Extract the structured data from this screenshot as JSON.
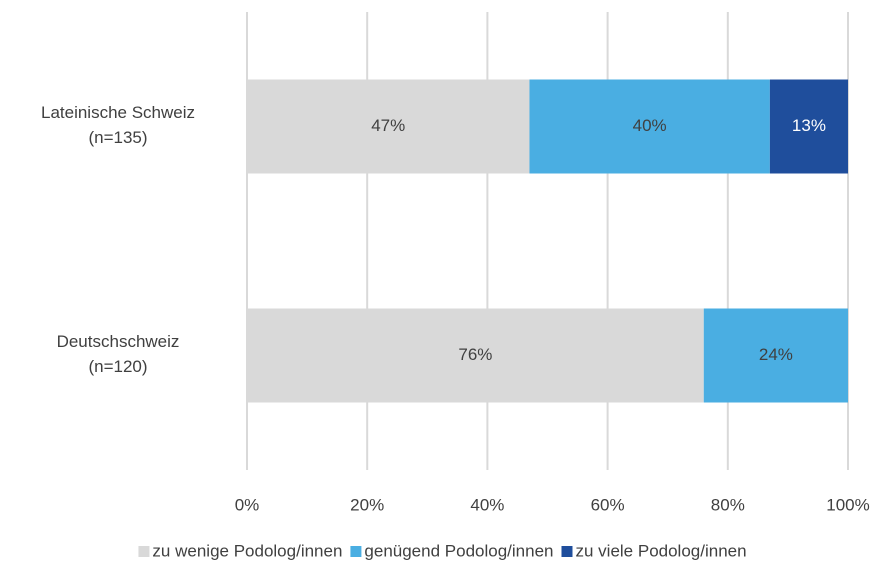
{
  "chart_data": {
    "type": "stacked_barh",
    "categories": [
      "Lateinische Schweiz\n(n=135)",
      "Deutschschweiz\n(n=120)"
    ],
    "series": [
      {
        "name": "zu wenige Podolog/innen",
        "color": "#d9d9d9",
        "label_color": "#404040",
        "values": [
          47,
          76
        ],
        "value_labels": [
          "47%",
          "76%"
        ]
      },
      {
        "name": "genügend Podolog/innen",
        "color": "#4aaee2",
        "label_color": "#404040",
        "values": [
          40,
          24
        ],
        "value_labels": [
          "40%",
          "24%"
        ]
      },
      {
        "name": "zu viele Podolog/innen",
        "color": "#1f4e9c",
        "label_color": "#ffffff",
        "values": [
          13,
          null
        ],
        "value_labels": [
          "13%",
          null
        ]
      }
    ],
    "xlim": [
      0,
      100
    ],
    "xticks": [
      {
        "value": 0,
        "label": "0%"
      },
      {
        "value": 20,
        "label": "20%"
      },
      {
        "value": 40,
        "label": "40%"
      },
      {
        "value": 60,
        "label": "60%"
      },
      {
        "value": 80,
        "label": "80%"
      },
      {
        "value": 100,
        "label": "100%"
      }
    ],
    "grid": true,
    "legend": "bottom"
  }
}
